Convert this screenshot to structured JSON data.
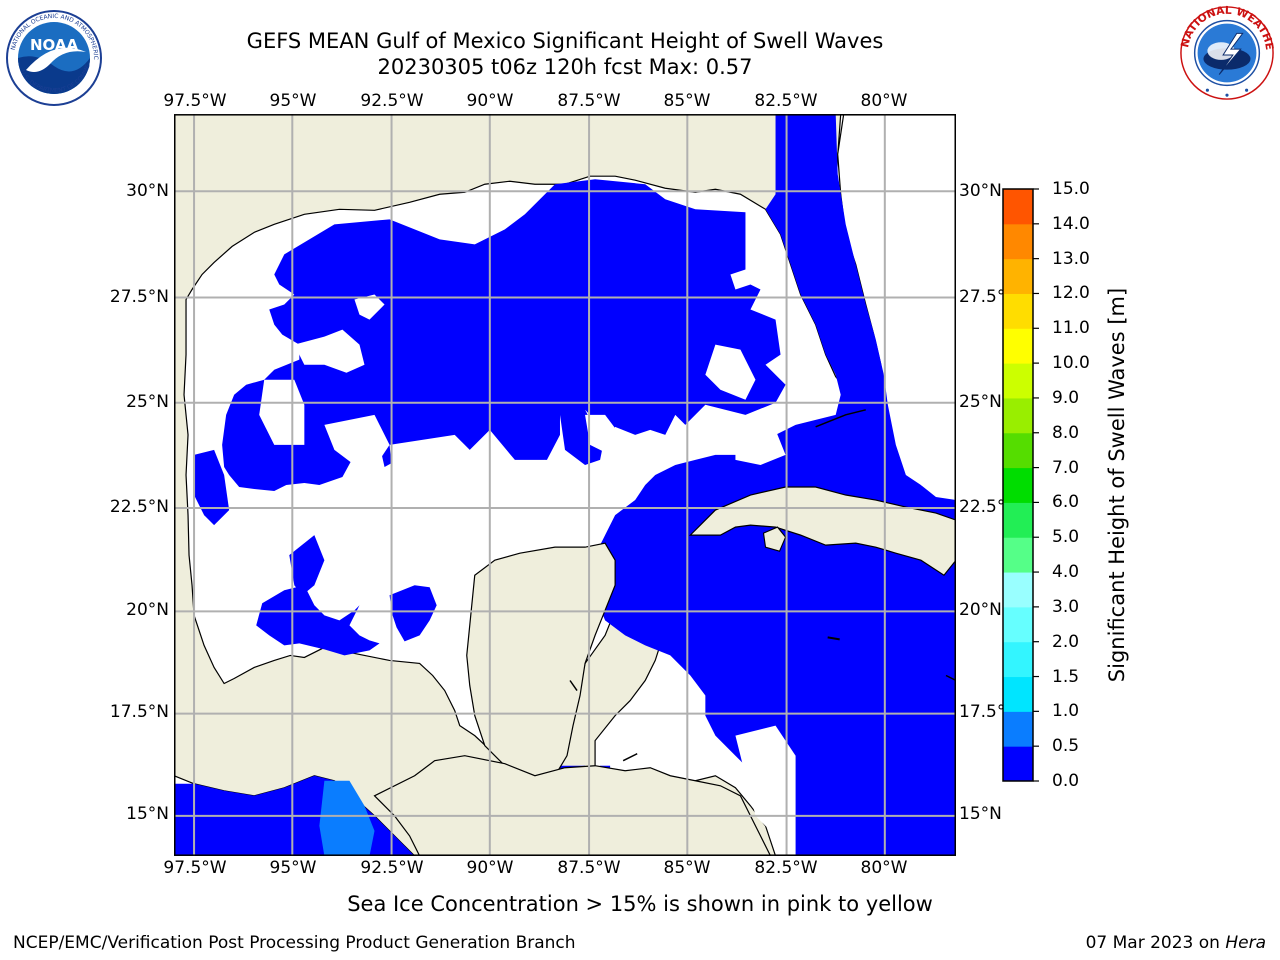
{
  "title": {
    "line1": "GEFS MEAN Gulf of Mexico Significant Height of Swell Waves",
    "line2": "20230305 t06z 120h fcst   Max: 0.57"
  },
  "logos": {
    "noaa": {
      "text": "NOAA",
      "icon": "noaa-logo-icon"
    },
    "nws": {
      "icon": "nws-logo-icon"
    }
  },
  "map": {
    "lon_ticks": [
      "97.5°W",
      "95°W",
      "92.5°W",
      "90°W",
      "87.5°W",
      "85°W",
      "82.5°W",
      "80°W"
    ],
    "lat_ticks": [
      "30°N",
      "27.5°N",
      "25°N",
      "22.5°N",
      "20°N",
      "17.5°N",
      "15°N"
    ],
    "colors": {
      "land": "#efeedc",
      "ocean_low": "#0000ff",
      "ocean_05": "#0a7dff",
      "no_data": "#ffffff",
      "grid": "#b0b0b0"
    }
  },
  "colorbar": {
    "label": "Significant Height of Swell Waves [m]",
    "ticks": [
      "15.0",
      "14.0",
      "13.0",
      "12.0",
      "11.0",
      "10.0",
      "9.0",
      "8.0",
      "7.0",
      "6.0",
      "5.0",
      "4.0",
      "3.0",
      "2.0",
      "1.5",
      "1.0",
      "0.5",
      "0.0"
    ],
    "colors": [
      "#0000ff",
      "#0a7dff",
      "#00e5ff",
      "#33f5ff",
      "#66ffff",
      "#99ffff",
      "#55ff88",
      "#22ee55",
      "#00dd00",
      "#55dd00",
      "#99ee00",
      "#ccff00",
      "#ffff00",
      "#ffdd00",
      "#ffb300",
      "#ff8800",
      "#ff5500",
      "#ff2200",
      "#ff0000"
    ]
  },
  "caption": "Sea Ice Concentration > 15% is shown in pink to yellow",
  "footer": {
    "left": "NCEP/EMC/Verification Post Processing Product Generation Branch",
    "right_date": "07 Mar 2023 on ",
    "right_machine": "Hera"
  }
}
